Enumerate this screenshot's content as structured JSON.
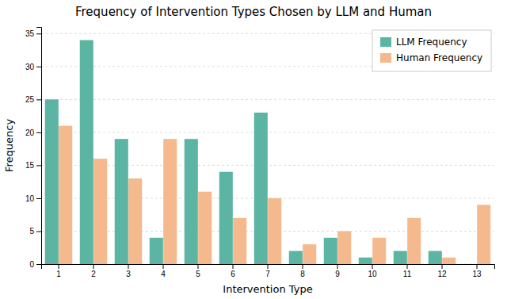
{
  "chart_data": {
    "type": "bar",
    "title": "Frequency of Intervention Types Chosen by LLM and Human",
    "xlabel": "Intervention Type",
    "ylabel": "Frequency",
    "categories": [
      1,
      2,
      3,
      4,
      5,
      6,
      7,
      8,
      9,
      10,
      11,
      12,
      13
    ],
    "series": [
      {
        "name": "LLM Frequency",
        "color": "#5BB5A2",
        "values": [
          25,
          34,
          19,
          4,
          19,
          14,
          23,
          2,
          4,
          1,
          2,
          2,
          0
        ]
      },
      {
        "name": "Human Frequency",
        "color": "#F5B98E",
        "values": [
          21,
          16,
          13,
          19,
          11,
          7,
          10,
          3,
          5,
          4,
          7,
          1,
          9
        ]
      }
    ],
    "ylim": [
      0,
      36
    ],
    "yticks": [
      0,
      5,
      10,
      15,
      20,
      25,
      30,
      35
    ],
    "grid": true,
    "legend": "upper right"
  }
}
